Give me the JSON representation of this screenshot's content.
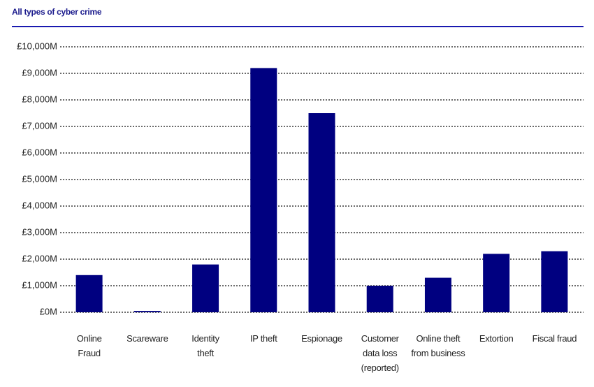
{
  "chart_data": {
    "type": "bar",
    "title": "All types of cyber crime",
    "categories": [
      "Online\nFraud",
      "Scareware",
      "Identity\ntheft",
      "IP theft",
      "Espionage",
      "Customer\ndata loss\n(reported)",
      "Online theft\nfrom business",
      "Extortion",
      "Fiscal fraud"
    ],
    "values": [
      1400,
      50,
      1800,
      9200,
      7500,
      1000,
      1300,
      2200,
      2300
    ],
    "color": "#000080",
    "ylim": [
      0,
      10000
    ],
    "yticks": [
      {
        "value": 0,
        "label": "£0M"
      },
      {
        "value": 1000,
        "label": "£1,000M"
      },
      {
        "value": 2000,
        "label": "£2,000M"
      },
      {
        "value": 3000,
        "label": "£3,000M"
      },
      {
        "value": 4000,
        "label": "£4,000M"
      },
      {
        "value": 5000,
        "label": "£5,000M"
      },
      {
        "value": 6000,
        "label": "£6,000M"
      },
      {
        "value": 7000,
        "label": "£7,000M"
      },
      {
        "value": 8000,
        "label": "£8,000M"
      },
      {
        "value": 9000,
        "label": "£9,000M"
      },
      {
        "value": 10000,
        "label": "£10,000M"
      }
    ],
    "grid": true
  }
}
